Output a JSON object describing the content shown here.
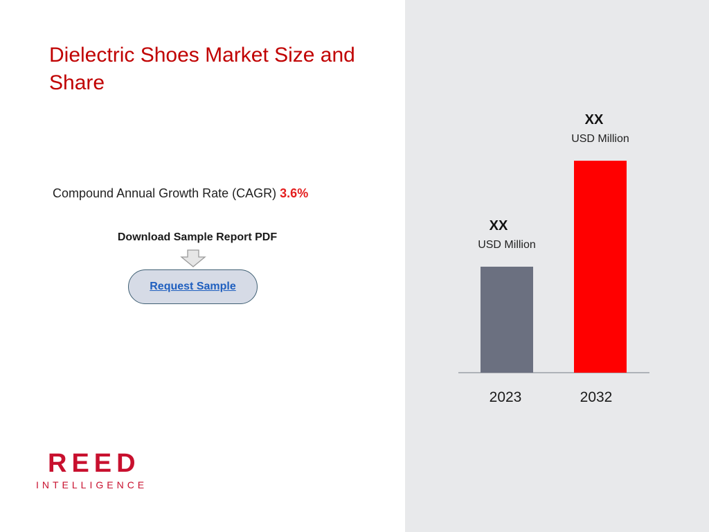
{
  "page": {
    "title": "Dielectric Shoes Market Size and Share",
    "cagr_label": "Compound Annual Growth Rate (CAGR)",
    "cagr_value": "3.6%",
    "download_label": "Download Sample Report PDF",
    "request_button": "Request Sample"
  },
  "chart_data": {
    "type": "bar",
    "categories": [
      "2023",
      "2032"
    ],
    "values": [
      300,
      600
    ],
    "value_labels": [
      "XX",
      "XX"
    ],
    "unit_labels": [
      "USD Million",
      "USD Million"
    ],
    "colors": [
      "#6b7080",
      "#ff0000"
    ]
  },
  "logo": {
    "main": "REED",
    "sub": "INTELLIGENCE"
  },
  "colors": {
    "accent": "#c00000",
    "panel": "#e8e9eb"
  }
}
